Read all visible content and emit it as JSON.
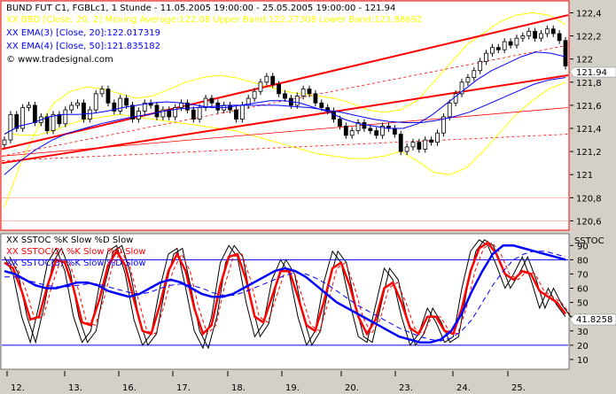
{
  "window": {
    "price_panel_bg": "#ffffff",
    "frame_bg": "#d4d0c8",
    "border_color": "#ff0000"
  },
  "price_legend": {
    "line1": "BUND FUT C1, FGBLc1, 1 Stunde - 11.05.2005 19:00:00 - 25.05.2005 19:00:00 - 121.94",
    "line2": "XX BBD [Close, 20, 2] Moving Average:122.08 Upper Band:122.27308 Lower Band:121.88692",
    "line3": "XX EMA(3) [Close, 20]:122.017319",
    "line4": "XX EMA(4) [Close, 50]:121.835182",
    "line5": "© www.tradesignal.com"
  },
  "stoch_legend": {
    "line1": "XX SSTOC %K Slow %D Slow",
    "line2": "XX SSTOC(2) %K Slow %D Slow",
    "line3": "XX SSTOC(3) %K Slow %D Slow",
    "axis_title": "SSTOC"
  },
  "last_values": {
    "price": "121.94",
    "stoch": "41.8258"
  },
  "chart_data": [
    {
      "type": "candlestick",
      "title": "BUND FUT C1, FGBLc1, 1 Stunde - 11.05.2005 19:00:00 - 25.05.2005 19:00:00 - 121.94",
      "yticks": [
        "122,4",
        "122,2",
        "122",
        "121,8",
        "121,6",
        "121,4",
        "121,2",
        "121",
        "120,8",
        "120,6"
      ],
      "ylim": [
        120.55,
        122.48
      ],
      "series": [
        {
          "name": "BUND FUT C1",
          "color": "#000000",
          "values": [
            121.3,
            121.52,
            121.4,
            121.58,
            121.6,
            121.45,
            121.5,
            121.38,
            121.52,
            121.44,
            121.56,
            121.6,
            121.62,
            121.48,
            121.56,
            121.7,
            121.74,
            121.62,
            121.55,
            121.66,
            121.6,
            121.48,
            121.55,
            121.62,
            121.6,
            121.5,
            121.56,
            121.5,
            121.58,
            121.62,
            121.56,
            121.48,
            121.58,
            121.66,
            121.62,
            121.56,
            121.6,
            121.56,
            121.48,
            121.6,
            121.66,
            121.72,
            121.8,
            121.85,
            121.78,
            121.7,
            121.66,
            121.6,
            121.68,
            121.74,
            121.7,
            121.62,
            121.58,
            121.55,
            121.48,
            121.42,
            121.34,
            121.38,
            121.45,
            121.4,
            121.38,
            121.34,
            121.42,
            121.4,
            121.35,
            121.2,
            121.24,
            121.28,
            121.22,
            121.3,
            121.28,
            121.36,
            121.5,
            121.62,
            121.7,
            121.8,
            121.84,
            121.9,
            121.98,
            122.05,
            122.1,
            122.08,
            122.15,
            122.12,
            122.18,
            122.2,
            122.24,
            122.18,
            122.22,
            122.26,
            122.22,
            122.16,
            121.94
          ]
        },
        {
          "name": "EMA(3) [Close, 20]",
          "color": "#0000ff",
          "values": [
            121.35,
            121.42,
            121.45,
            121.5,
            121.52,
            121.52,
            121.53,
            121.55,
            121.58,
            121.6,
            121.62,
            121.63,
            121.62,
            121.6,
            121.58,
            121.58,
            121.6,
            121.62,
            121.64,
            121.64,
            121.62,
            121.58,
            121.54,
            121.48,
            121.44,
            121.42,
            121.4,
            121.4,
            121.44,
            121.52,
            121.62,
            121.72,
            121.82,
            121.9,
            121.96,
            122.02,
            122.06,
            122.05,
            122.02
          ]
        },
        {
          "name": "EMA(4) [Close, 50]",
          "color": "#0000ff",
          "values": [
            121.0,
            121.12,
            121.22,
            121.3,
            121.36,
            121.4,
            121.44,
            121.47,
            121.5,
            121.52,
            121.55,
            121.57,
            121.58,
            121.59,
            121.6,
            121.6,
            121.6,
            121.6,
            121.59,
            121.58,
            121.56,
            121.54,
            121.51,
            121.48,
            121.46,
            121.45,
            121.45,
            121.47,
            121.5,
            121.54,
            121.6,
            121.66,
            121.72,
            121.78,
            121.82,
            121.84
          ]
        },
        {
          "name": "BBD Upper Band",
          "color": "#ffff00",
          "values": [
            120.72,
            121.1,
            121.4,
            121.62,
            121.72,
            121.76,
            121.74,
            121.7,
            121.66,
            121.68,
            121.74,
            121.8,
            121.84,
            121.86,
            121.84,
            121.8,
            121.76,
            121.72,
            121.7,
            121.68,
            121.66,
            121.62,
            121.56,
            121.54,
            121.56,
            121.64,
            121.8,
            121.96,
            122.12,
            122.22,
            122.32,
            122.38,
            122.4,
            122.38,
            122.3
          ]
        },
        {
          "name": "BBD Lower Band",
          "color": "#ffff00",
          "values": [
            121.36,
            121.34,
            121.34,
            121.38,
            121.44,
            121.48,
            121.5,
            121.52,
            121.5,
            121.48,
            121.46,
            121.44,
            121.42,
            121.4,
            121.38,
            121.34,
            121.3,
            121.26,
            121.22,
            121.18,
            121.16,
            121.14,
            121.14,
            121.16,
            121.2,
            121.12,
            121.02,
            121.0,
            121.06,
            121.2,
            121.36,
            121.52,
            121.64,
            121.74,
            121.8
          ]
        }
      ]
    },
    {
      "type": "line",
      "title": "XX SSTOC %K Slow %D Slow",
      "yticks": [
        "90",
        "80",
        "70",
        "60",
        "50",
        "40",
        "30",
        "20",
        "10"
      ],
      "ylim": [
        5,
        97
      ],
      "x_labels": [
        "12.",
        "13.",
        "16.",
        "17.",
        "18.",
        "19.",
        "20.",
        "23.",
        "24.",
        "25."
      ],
      "levels": [
        80,
        20
      ],
      "series": [
        {
          "name": "SSTOC %K",
          "color": "#000000",
          "values": [
            82,
            70,
            40,
            22,
            48,
            78,
            88,
            72,
            40,
            22,
            30,
            62,
            86,
            90,
            70,
            38,
            20,
            28,
            60,
            84,
            88,
            60,
            30,
            18,
            40,
            78,
            90,
            82,
            50,
            26,
            35,
            66,
            80,
            70,
            40,
            20,
            30,
            64,
            86,
            78,
            50,
            26,
            22,
            48,
            74,
            66,
            40,
            20,
            28,
            46,
            36,
            22,
            26,
            60,
            86,
            94,
            90,
            76,
            60,
            70,
            82,
            66,
            46,
            60,
            48,
            40
          ]
        },
        {
          "name": "SSTOC(2) %K",
          "color": "#ff0000",
          "values": [
            78,
            74,
            58,
            38,
            40,
            62,
            80,
            78,
            60,
            36,
            34,
            52,
            76,
            86,
            76,
            52,
            30,
            28,
            48,
            72,
            84,
            72,
            46,
            28,
            34,
            62,
            82,
            84,
            66,
            40,
            36,
            54,
            72,
            72,
            54,
            34,
            30,
            50,
            74,
            78,
            62,
            40,
            28,
            38,
            60,
            64,
            50,
            32,
            28,
            40,
            40,
            30,
            28,
            46,
            72,
            88,
            92,
            84,
            70,
            66,
            72,
            70,
            58,
            54,
            50,
            42
          ]
        },
        {
          "name": "SSTOC(3) %K",
          "color": "#0000ff",
          "values": [
            72,
            70,
            66,
            62,
            60,
            60,
            62,
            64,
            64,
            62,
            58,
            56,
            54,
            56,
            60,
            64,
            66,
            64,
            60,
            56,
            54,
            54,
            56,
            60,
            64,
            68,
            72,
            74,
            72,
            68,
            62,
            56,
            50,
            46,
            42,
            38,
            34,
            30,
            26,
            24,
            22,
            22,
            24,
            30,
            42,
            58,
            72,
            84,
            90,
            90,
            88,
            86,
            84,
            82,
            80
          ]
        },
        {
          "name": "SSTOC(3) %D",
          "color": "#0000ff",
          "values": [
            68,
            68,
            66,
            64,
            62,
            61,
            61,
            62,
            63,
            63,
            61,
            59,
            57,
            56,
            57,
            60,
            62,
            63,
            62,
            60,
            57,
            55,
            55,
            57,
            60,
            63,
            66,
            69,
            71,
            70,
            67,
            63,
            58,
            53,
            48,
            44,
            40,
            36,
            32,
            29,
            26,
            24,
            23,
            25,
            30,
            38,
            50,
            62,
            72,
            80,
            84,
            86,
            86,
            84,
            82
          ]
        }
      ]
    }
  ],
  "colors": {
    "channel": "#ff0000",
    "channel_mid": "#ff0000",
    "level_line": "#0000ff"
  }
}
